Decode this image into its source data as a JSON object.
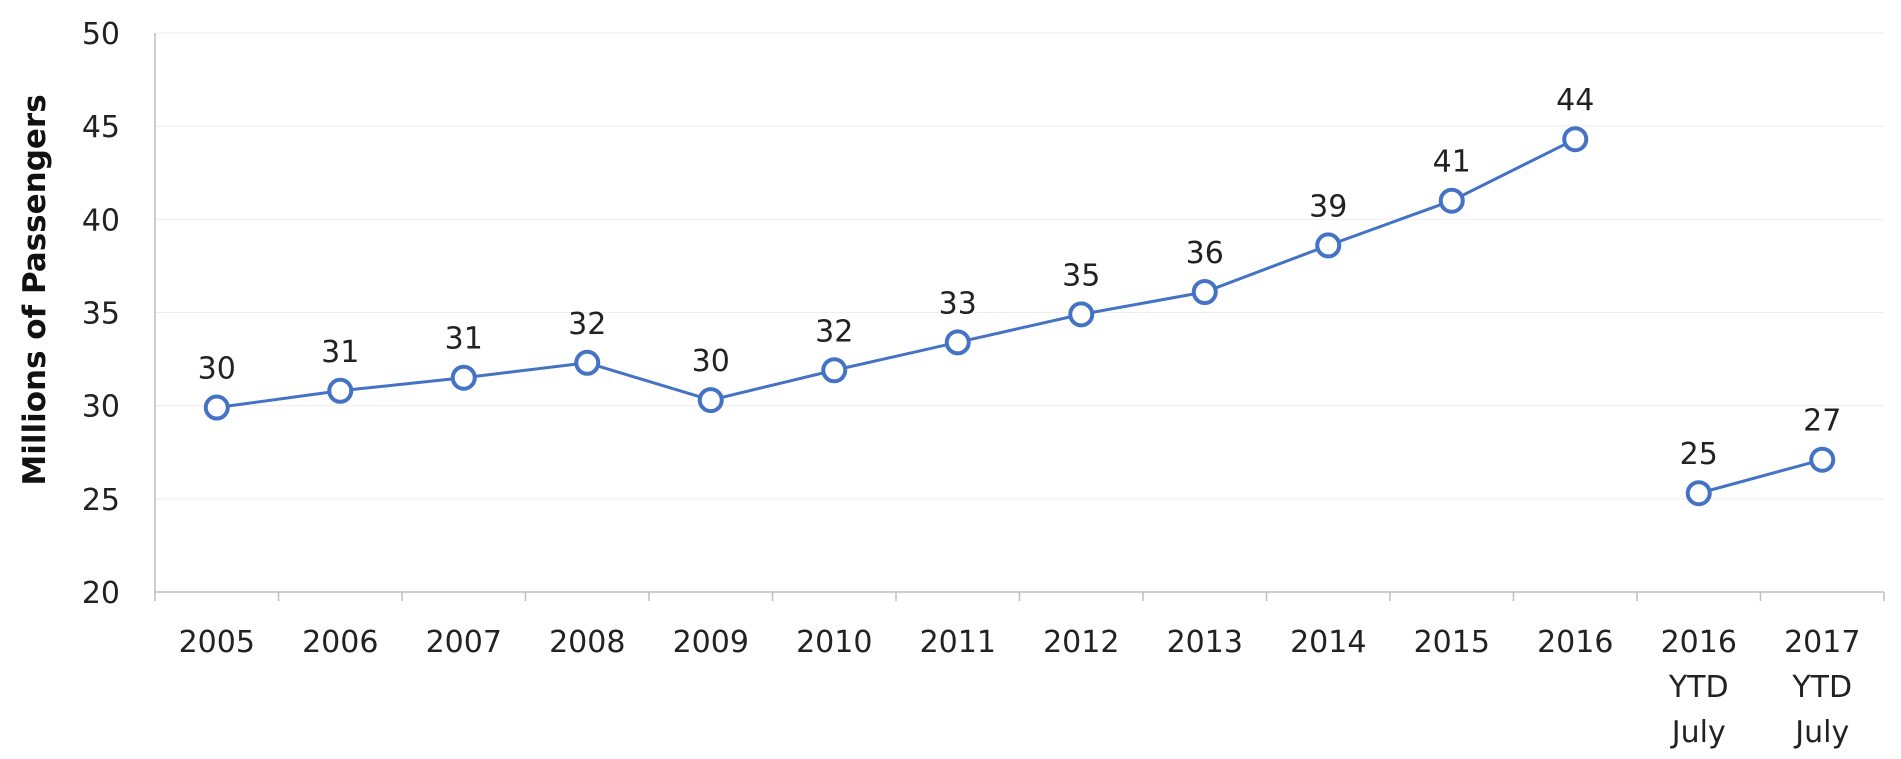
{
  "chart_data": {
    "type": "line",
    "ylabel": "Millions of Passengers",
    "xlabel": "",
    "ylim": [
      20,
      50
    ],
    "yticks": [
      20,
      25,
      30,
      35,
      40,
      45,
      50
    ],
    "grid": true,
    "categories": [
      [
        "2005"
      ],
      [
        "2006"
      ],
      [
        "2007"
      ],
      [
        "2008"
      ],
      [
        "2009"
      ],
      [
        "2010"
      ],
      [
        "2011"
      ],
      [
        "2012"
      ],
      [
        "2013"
      ],
      [
        "2014"
      ],
      [
        "2015"
      ],
      [
        "2016"
      ],
      [
        "2016",
        "YTD",
        "July"
      ],
      [
        "2017",
        "YTD",
        "July"
      ]
    ],
    "series": [
      {
        "values": [
          29.9,
          30.8,
          31.5,
          32.3,
          30.3,
          31.9,
          33.4,
          34.9,
          36.1,
          38.6,
          41.0,
          44.3,
          null,
          null
        ],
        "labels": [
          "30",
          "31",
          "31",
          "32",
          "30",
          "32",
          "33",
          "35",
          "36",
          "39",
          "41",
          "44",
          "",
          ""
        ]
      },
      {
        "values": [
          null,
          null,
          null,
          null,
          null,
          null,
          null,
          null,
          null,
          null,
          null,
          null,
          25.3,
          27.1
        ],
        "labels": [
          "",
          "",
          "",
          "",
          "",
          "",
          "",
          "",
          "",
          "",
          "",
          "",
          "25",
          "27"
        ]
      }
    ],
    "colors": {
      "line": "#4472c4",
      "axis": "#bfbfbf",
      "grid": "#eeeeee",
      "marker_fill": "#ffffff"
    }
  }
}
